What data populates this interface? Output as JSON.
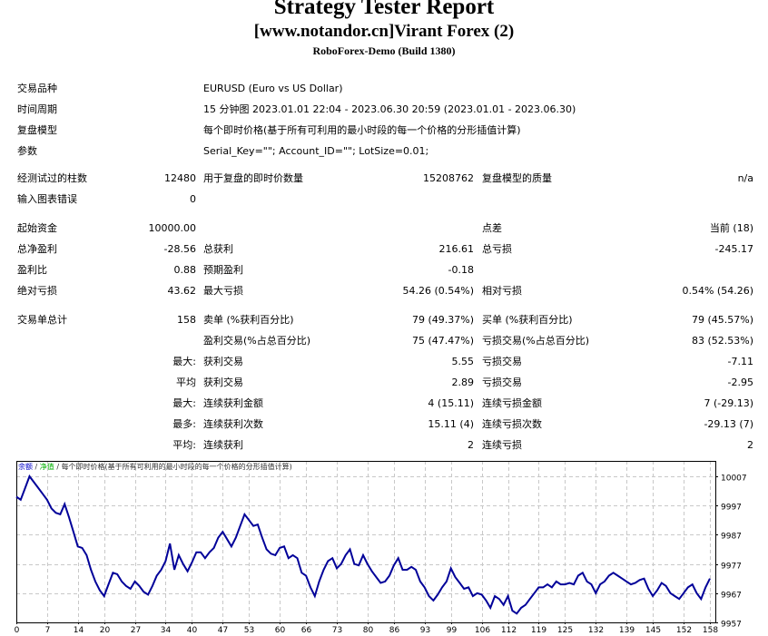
{
  "report": {
    "title": "Strategy Tester Report",
    "expert": "[www.notandor.cn]Virant Forex (2)",
    "server": "RoboForex-Demo (Build 1380)"
  },
  "settings": [
    {
      "label": "交易品种",
      "value": "EURUSD (Euro vs US Dollar)"
    },
    {
      "label": "时间周期",
      "value": "15 分钟图 2023.01.01 22:04 - 2023.06.30 20:59 (2023.01.01 - 2023.06.30)"
    },
    {
      "label": "复盘模型",
      "value": "每个即时价格(基于所有可利用的最小时段的每一个价格的分形插值计算)"
    },
    {
      "label": "参数",
      "value": "Serial_Key=\"\"; Account_ID=\"\"; LotSize=0.01;"
    }
  ],
  "test_info": {
    "bars_label": "经测试过的柱数",
    "bars_value": "12480",
    "ticks_label": "用于复盘的即时价数量",
    "ticks_value": "15208762",
    "quality_label": "复盘模型的质量",
    "quality_value": "n/a",
    "errors_label": "输入图表错误",
    "errors_value": "0"
  },
  "results": {
    "initial_deposit_label": "起始资金",
    "initial_deposit": "10000.00",
    "spread_label": "点差",
    "spread": "当前 (18)",
    "net_profit_label": "总净盈利",
    "net_profit": "-28.56",
    "gross_profit_label": "总获利",
    "gross_profit": "216.61",
    "gross_loss_label": "总亏损",
    "gross_loss": "-245.17",
    "profit_factor_label": "盈利比",
    "profit_factor": "0.88",
    "expected_payoff_label": "预期盈利",
    "expected_payoff": "-0.18",
    "abs_drawdown_label": "绝对亏损",
    "abs_drawdown": "43.62",
    "max_drawdown_label": "最大亏损",
    "max_drawdown": "54.26 (0.54%)",
    "rel_drawdown_label": "相对亏损",
    "rel_drawdown": "0.54% (54.26)"
  },
  "trades": {
    "total_label": "交易单总计",
    "total": "158",
    "short_label": "卖单 (%获利百分比)",
    "short": "79 (49.37%)",
    "long_label": "买单 (%获利百分比)",
    "long": "79 (45.57%)",
    "profit_trades_label": "盈利交易(%占总百分比)",
    "profit_trades": "75 (47.47%)",
    "loss_trades_label": "亏损交易(%占总百分比)",
    "loss_trades": "83 (52.53%)",
    "largest_prefix": "最大:",
    "largest_profit_label": "获利交易",
    "largest_profit": "5.55",
    "largest_loss_label": "亏损交易",
    "largest_loss": "-7.11",
    "average_prefix": "平均",
    "average_profit_label": "获利交易",
    "average_profit": "2.89",
    "average_loss_label": "亏损交易",
    "average_loss": "-2.95",
    "max_consec_prefix": "最大:",
    "max_consec_wins_label": "连续获利金额",
    "max_consec_wins": "4 (15.11)",
    "max_consec_losses_label": "连续亏损金额",
    "max_consec_losses": "7 (-29.13)",
    "maximal_prefix": "最多:",
    "maximal_consec_profit_label": "连续获利次数",
    "maximal_consec_profit": "15.11 (4)",
    "maximal_consec_loss_label": "连续亏损次数",
    "maximal_consec_loss": "-29.13 (7)",
    "avg_consec_prefix": "平均:",
    "avg_consec_wins_label": "连续获利",
    "avg_consec_wins": "2",
    "avg_consec_losses_label": "连续亏损",
    "avg_consec_losses": "2"
  },
  "chart_legend": {
    "balance": "余额",
    "sep1": " / ",
    "equity": "净值",
    "sep2": " / ",
    "model": "每个即时价格(基于所有可利用的最小时段的每一个价格的分形插值计算)"
  },
  "colors": {
    "balance_line": "#000099",
    "equity_legend": "#00b000",
    "grid": "#c8c8c8",
    "frame": "#000000"
  },
  "chart_data": {
    "type": "line",
    "title": "余额 / 净值 / 每个即时价格(基于所有可利用的最小时段的每一个价格的分形插值计算)",
    "xlabel": "",
    "ylabel": "",
    "x_ticks": [
      0,
      7,
      14,
      20,
      27,
      34,
      40,
      47,
      53,
      60,
      66,
      73,
      80,
      86,
      93,
      99,
      106,
      112,
      119,
      125,
      132,
      139,
      145,
      152,
      158
    ],
    "y_ticks": [
      10007,
      9997,
      9987,
      9977,
      9967,
      9957
    ],
    "xlim": [
      0,
      159
    ],
    "ylim": [
      9957,
      10010
    ],
    "grid": true,
    "legend_position": "top-left",
    "series": [
      {
        "name": "余额",
        "color": "#000099",
        "x": [
          0,
          1,
          2,
          3,
          4,
          5,
          6,
          7,
          8,
          9,
          10,
          11,
          12,
          13,
          14,
          15,
          16,
          17,
          18,
          19,
          20,
          21,
          22,
          23,
          24,
          25,
          26,
          27,
          28,
          29,
          30,
          31,
          32,
          33,
          34,
          35,
          36,
          37,
          38,
          39,
          40,
          41,
          42,
          43,
          44,
          45,
          46,
          47,
          48,
          49,
          50,
          51,
          52,
          53,
          54,
          55,
          56,
          57,
          58,
          59,
          60,
          61,
          62,
          63,
          64,
          65,
          66,
          67,
          68,
          69,
          70,
          71,
          72,
          73,
          74,
          75,
          76,
          77,
          78,
          79,
          80,
          81,
          82,
          83,
          84,
          85,
          86,
          87,
          88,
          89,
          90,
          91,
          92,
          93,
          94,
          95,
          96,
          97,
          98,
          99,
          100,
          101,
          102,
          103,
          104,
          105,
          106,
          107,
          108,
          109,
          110,
          111,
          112,
          113,
          114,
          115,
          116,
          117,
          118,
          119,
          120,
          121,
          122,
          123,
          124,
          125,
          126,
          127,
          128,
          129,
          130,
          131,
          132,
          133,
          134,
          135,
          136,
          137,
          138,
          139,
          140,
          141,
          142,
          143,
          144,
          145,
          146,
          147,
          148,
          149,
          150,
          151,
          152,
          153,
          154,
          155,
          156,
          157,
          158
        ],
        "values": [
          10000,
          9999,
          10003,
          10007,
          10005,
          10003,
          10001,
          9999,
          9996,
          9994.5,
          9994,
          9997.5,
          9993,
          9988,
          9983,
          9982.5,
          9980,
          9975,
          9971,
          9968,
          9966,
          9970,
          9974,
          9973.5,
          9971,
          9969.5,
          9968.5,
          9971,
          9969.5,
          9967.5,
          9966.5,
          9969.5,
          9973,
          9975,
          9978,
          9984,
          9975,
          9980,
          9977,
          9974.5,
          9977.5,
          9981,
          9981,
          9979,
          9981,
          9982.5,
          9986,
          9988,
          9985.5,
          9983,
          9986,
          9990,
          9994,
          9992,
          9990,
          9990.5,
          9986,
          9982,
          9980.5,
          9980,
          9982.5,
          9983,
          9979,
          9980,
          9979,
          9974,
          9973,
          9969,
          9966,
          9971,
          9975,
          9978,
          9979,
          9975.5,
          9977,
          9980,
          9982,
          9977,
          9976.5,
          9980,
          9977,
          9974.5,
          9972.5,
          9970.5,
          9971,
          9973,
          9976.5,
          9979,
          9975,
          9975,
          9976,
          9975,
          9971,
          9969,
          9966,
          9964.5,
          9966.5,
          9969,
          9971,
          9975.5,
          9972.5,
          9970.5,
          9968.5,
          9969,
          9966,
          9967,
          9966.5,
          9964.5,
          9962,
          9966,
          9965,
          9963,
          9966,
          9961,
          9960,
          9962,
          9963,
          9965,
          9967,
          9969,
          9969,
          9970,
          9969,
          9971,
          9970,
          9970,
          9970.5,
          9970,
          9973,
          9974,
          9971,
          9970,
          9967,
          9970,
          9971,
          9973,
          9974,
          9973,
          9972,
          9971,
          9970,
          9970.5,
          9971.5,
          9972,
          9968.5,
          9966,
          9968,
          9970.5,
          9969.5,
          9967,
          9966,
          9965,
          9967,
          9969,
          9970,
          9967,
          9965,
          9969,
          9972
        ]
      }
    ]
  }
}
